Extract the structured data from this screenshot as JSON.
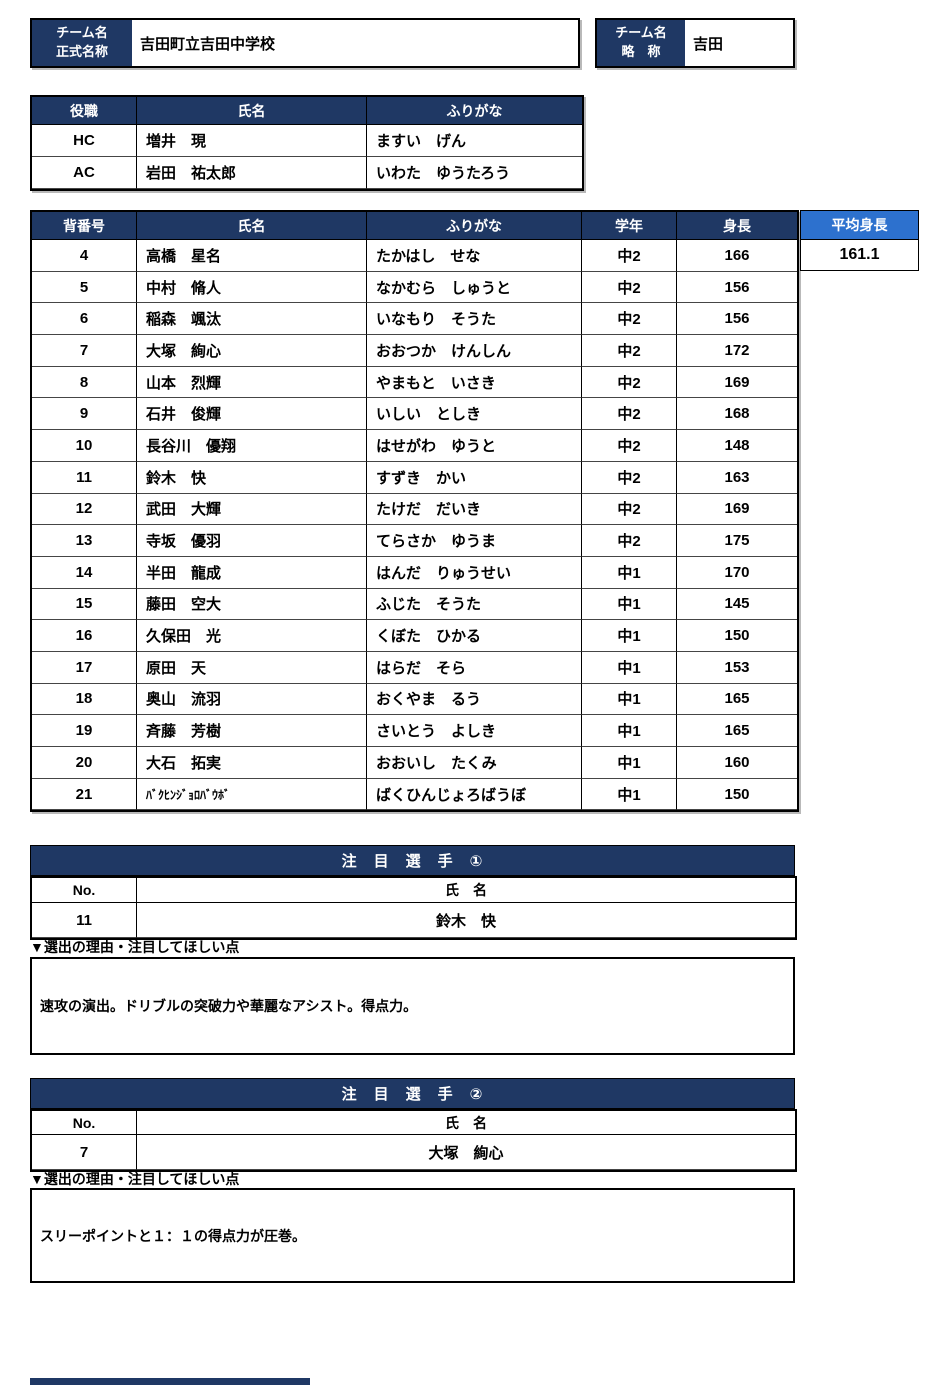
{
  "colors": {
    "navy": "#1F3864",
    "accent_blue": "#2D71CE"
  },
  "team": {
    "official_label_line1": "チーム名",
    "official_label_line2": "正式名称",
    "official_name": "吉田町立吉田中学校",
    "short_label_line1": "チーム名",
    "short_label_line2": "略　称",
    "short_name": "吉田"
  },
  "staff_table": {
    "headers": [
      "役職",
      "氏名",
      "ふりがな"
    ],
    "rows": [
      [
        "HC",
        "増井　現",
        "ますい　げん"
      ],
      [
        "AC",
        "岩田　祐太郎",
        "いわた　ゆうたろう"
      ]
    ]
  },
  "roster_table": {
    "headers": [
      "背番号",
      "氏名",
      "ふりがな",
      "学年",
      "身長"
    ],
    "avg_height_label": "平均身長",
    "avg_height_value": "161.1",
    "rows": [
      [
        "4",
        "高橋　星名",
        "たかはし　せな",
        "中2",
        "166"
      ],
      [
        "5",
        "中村　脩人",
        "なかむら　しゅうと",
        "中2",
        "156"
      ],
      [
        "6",
        "稲森　颯汰",
        "いなもり　そうた",
        "中2",
        "156"
      ],
      [
        "7",
        "大塚　絢心",
        "おおつか　けんしん",
        "中2",
        "172"
      ],
      [
        "8",
        "山本　烈輝",
        "やまもと　いさき",
        "中2",
        "169"
      ],
      [
        "9",
        "石井　俊輝",
        "いしい　としき",
        "中2",
        "168"
      ],
      [
        "10",
        "長谷川　優翔",
        "はせがわ　ゆうと",
        "中2",
        "148"
      ],
      [
        "11",
        "鈴木　快",
        "すずき　かい",
        "中2",
        "163"
      ],
      [
        "12",
        "武田　大輝",
        "たけだ　だいき",
        "中2",
        "169"
      ],
      [
        "13",
        "寺坂　優羽",
        "てらさか　ゆうま",
        "中2",
        "175"
      ],
      [
        "14",
        "半田　龍成",
        "はんだ　りゅうせい",
        "中1",
        "170"
      ],
      [
        "15",
        "藤田　空大",
        "ふじた　そうた",
        "中1",
        "145"
      ],
      [
        "16",
        "久保田　光",
        "くぼた　ひかる",
        "中1",
        "150"
      ],
      [
        "17",
        "原田　天",
        "はらだ　そら",
        "中1",
        "153"
      ],
      [
        "18",
        "奥山　流羽",
        "おくやま　るう",
        "中1",
        "165"
      ],
      [
        "19",
        "斉藤　芳樹",
        "さいとう　よしき",
        "中1",
        "165"
      ],
      [
        "20",
        "大石　拓実",
        "おおいし　たくみ",
        "中1",
        "160"
      ],
      [
        "21",
        "ﾊﾞｸﾋﾝｼﾞｮﾛﾊﾞｳﾎﾞ",
        "ばくひんじょろばうぼ",
        "中1",
        "150"
      ]
    ]
  },
  "featured1": {
    "title": "注　目　選　手　①",
    "header_row": [
      "No.",
      "氏　名"
    ],
    "value_row": [
      "11",
      "鈴木　快"
    ],
    "reason_label": "▼選出の理由・注目してほしい点",
    "reason": "速攻の演出。ドリブルの突破力や華麗なアシスト。得点力。"
  },
  "featured2": {
    "title": "注　目　選　手　②",
    "header_row": [
      "No.",
      "氏　名"
    ],
    "value_row": [
      "7",
      "大塚　絢心"
    ],
    "reason_label": "▼選出の理由・注目してほしい点",
    "reason": "スリーポイントと１：１の得点力が圧巻。"
  }
}
